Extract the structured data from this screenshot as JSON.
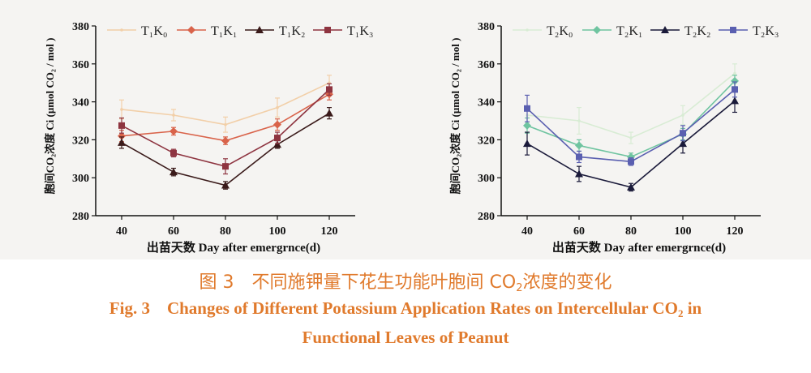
{
  "chart_data": [
    {
      "type": "line",
      "x": [
        40,
        60,
        80,
        100,
        120
      ],
      "xlabel": "出苗天数 Day after emergrnce(d)",
      "ylabel": "胞间CO₂浓度 Ci (μmol CO₂ / mol )",
      "ylim": [
        280,
        380
      ],
      "yticks": [
        280,
        300,
        320,
        340,
        360,
        380
      ],
      "legend_position": "top",
      "series": [
        {
          "name": "T₁K₀",
          "color": "#f2cfa8",
          "marker": "none",
          "values": [
            336,
            333,
            328,
            337,
            350
          ],
          "err": [
            5,
            3,
            4,
            5,
            4
          ]
        },
        {
          "name": "T₁K₁",
          "color": "#d9634a",
          "marker": "diamond",
          "values": [
            322,
            324.5,
            319.5,
            328,
            344
          ],
          "err": [
            3,
            2,
            2,
            3,
            3
          ]
        },
        {
          "name": "T₁K₂",
          "color": "#3a1a1a",
          "marker": "triangle",
          "values": [
            318.5,
            303,
            296,
            317.5,
            334
          ],
          "err": [
            3,
            2,
            2,
            2,
            3
          ]
        },
        {
          "name": "T₁K₃",
          "color": "#8e3440",
          "marker": "square",
          "values": [
            327.5,
            313,
            306,
            321,
            346.5
          ],
          "err": [
            4,
            2,
            4,
            3,
            3
          ]
        }
      ]
    },
    {
      "type": "line",
      "x": [
        40,
        60,
        80,
        100,
        120
      ],
      "xlabel": "出苗天数 Day after emergrnce(d)",
      "ylabel": "胞间CO₂浓度 Ci (μmol CO₂ / mol )",
      "ylim": [
        280,
        380
      ],
      "yticks": [
        280,
        300,
        320,
        340,
        360,
        380
      ],
      "legend_position": "top",
      "series": [
        {
          "name": "T₂K₀",
          "color": "#d8ecd4",
          "marker": "none",
          "values": [
            333,
            330,
            321,
            333,
            355
          ],
          "err": [
            4,
            7,
            3,
            5,
            5
          ]
        },
        {
          "name": "T₂K₁",
          "color": "#6fc4a0",
          "marker": "diamond",
          "values": [
            327.5,
            317,
            311,
            323,
            351
          ],
          "err": [
            4,
            3,
            2,
            3,
            3
          ]
        },
        {
          "name": "T₂K₂",
          "color": "#1a1a3a",
          "marker": "triangle",
          "values": [
            318,
            302,
            295,
            318,
            340.5
          ],
          "err": [
            6,
            4,
            2,
            5,
            6
          ]
        },
        {
          "name": "T₂K₃",
          "color": "#5a5fb0",
          "marker": "square",
          "values": [
            336.5,
            311,
            308.5,
            323.5,
            346.5
          ],
          "err": [
            7,
            3,
            2,
            4,
            4
          ]
        }
      ]
    }
  ],
  "caption": {
    "cn_prefix": "图 3",
    "cn_text_a": "不同施钾量下花生功能叶胞间 CO",
    "cn_text_sub": "2",
    "cn_text_b": "浓度的变化",
    "en_line1_a": "Fig. 3    Changes of Different Potassium Application Rates on Intercellular CO",
    "en_line1_sub": "2",
    "en_line1_b": " in",
    "en_line2": "Functional Leaves of Peanut"
  }
}
